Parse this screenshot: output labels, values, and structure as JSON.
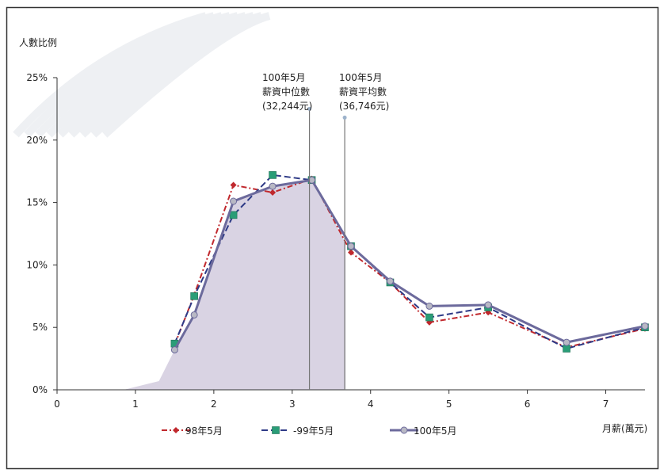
{
  "chart_data": {
    "type": "line",
    "title": "",
    "ylabel": "人數比例",
    "xlabel": "月薪(萬元)",
    "xlim": [
      0,
      7.5
    ],
    "ylim": [
      0,
      25
    ],
    "x_ticks": [
      "0",
      "1",
      "2",
      "3",
      "4",
      "5",
      "6",
      "7"
    ],
    "y_ticks": [
      "0%",
      "5%",
      "10%",
      "15%",
      "20%",
      "25%"
    ],
    "series": [
      {
        "name": "98年5月",
        "color": "#c0282d",
        "marker": "diamond",
        "x": [
          1.5,
          1.75,
          2.25,
          2.75,
          3.25,
          3.75,
          4.25,
          4.75,
          5.5,
          6.5,
          7.5
        ],
        "y": [
          3.6,
          7.6,
          16.4,
          15.8,
          16.9,
          11.0,
          8.6,
          5.4,
          6.2,
          3.4,
          4.9
        ]
      },
      {
        "name": "99年5月",
        "color": "#2e3a86",
        "marker": "square",
        "x": [
          1.5,
          1.75,
          2.25,
          2.75,
          3.25,
          3.75,
          4.25,
          4.75,
          5.5,
          6.5,
          7.5
        ],
        "y": [
          3.7,
          7.5,
          14.0,
          17.2,
          16.8,
          11.5,
          8.6,
          5.8,
          6.6,
          3.3,
          5.0
        ]
      },
      {
        "name": "100年5月",
        "color": "#6c6a9c",
        "marker": "circle",
        "x": [
          1.5,
          1.75,
          2.25,
          2.75,
          3.25,
          3.75,
          4.25,
          4.75,
          5.5,
          6.5,
          7.5
        ],
        "y": [
          3.2,
          6.0,
          15.1,
          16.3,
          16.8,
          11.5,
          8.7,
          6.7,
          6.8,
          3.8,
          5.1
        ]
      }
    ],
    "area": {
      "color": "#d9d3e3",
      "x": [
        0.85,
        1.3,
        1.5,
        1.75,
        2.25,
        2.75,
        3.25,
        3.68
      ],
      "y": [
        0,
        0.7,
        3.2,
        6.0,
        15.1,
        16.3,
        16.8,
        11.8
      ]
    },
    "annotations": [
      {
        "x": 3.22,
        "y_top": 22.5,
        "lines": [
          "100年5月",
          "薪資中位數",
          "(32,244元)"
        ]
      },
      {
        "x": 3.67,
        "y_top": 21.8,
        "lines": [
          "100年5月",
          "薪資平均數",
          "(36,746元)"
        ]
      }
    ],
    "legend_position": "bottom"
  }
}
